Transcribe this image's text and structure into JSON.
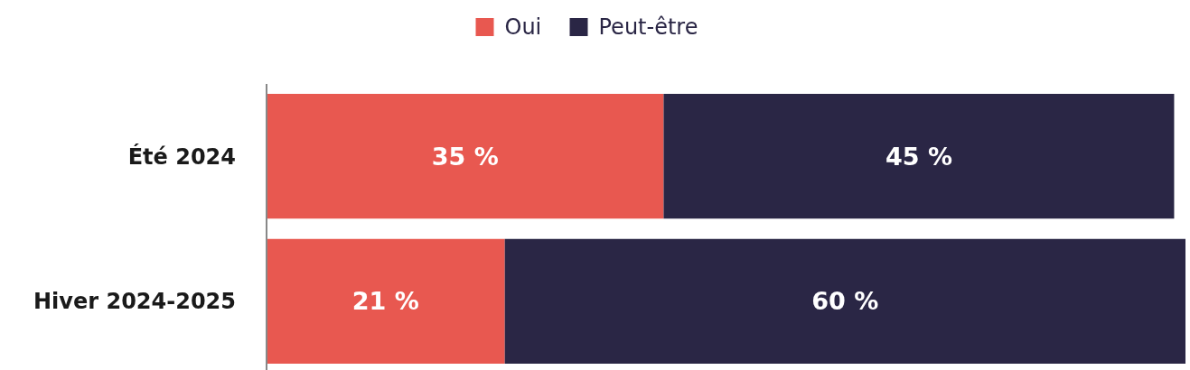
{
  "chart_data": {
    "type": "bar",
    "orientation": "horizontal",
    "stacked": true,
    "categories": [
      "Été 2024",
      "Hiver 2024-2025"
    ],
    "series": [
      {
        "name": "Oui",
        "color": "#e85850",
        "values": [
          35,
          21
        ],
        "value_labels": [
          "35 %",
          "21 %"
        ]
      },
      {
        "name": "Peut-être",
        "color": "#2a2645",
        "values": [
          45,
          60
        ],
        "value_labels": [
          "45 %",
          "60 %"
        ]
      }
    ],
    "legend": "top"
  }
}
